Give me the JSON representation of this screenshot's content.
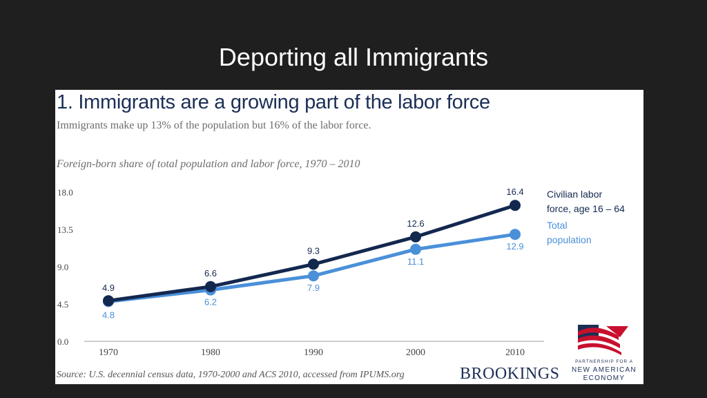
{
  "slide": {
    "title": "Deporting all Immigrants"
  },
  "figure": {
    "heading": "1. Immigrants are a growing part of the labor force",
    "subtitle": "Immigrants make up 13% of the population but 16% of the labor force.",
    "caption": "Foreign-born share of total population and labor force, 1970 – 2010",
    "source": "Source: U.S. decennial census data, 1970-2000 and ACS 2010, accessed from IPUMS.org",
    "brookings": "BROOKINGS",
    "partner_line1": "PARTNERSHIP FOR A",
    "partner_line2": "NEW AMERICAN",
    "partner_line3": "ECONOMY"
  },
  "chart_data": {
    "type": "line",
    "x": [
      1970,
      1980,
      1990,
      2000,
      2010
    ],
    "x_tick_labels": [
      "1970",
      "1980",
      "1990",
      "2000",
      "2010"
    ],
    "y_tick_labels": [
      "18.0",
      "13.5",
      "9.0",
      "4.5",
      "0.0"
    ],
    "y_ticks": [
      18.0,
      13.5,
      9.0,
      4.5,
      0.0
    ],
    "ylim": [
      0,
      18
    ],
    "grid": false,
    "legend_placement": "right of line ends",
    "series": [
      {
        "name_line1": "Civilian labor",
        "name_line2": "force, age 16 – 64",
        "values": [
          4.9,
          6.6,
          9.3,
          12.6,
          16.4
        ],
        "labels": [
          "4.9",
          "6.6",
          "9.3",
          "12.6",
          "16.4"
        ],
        "color": "#13284f"
      },
      {
        "name_line1": "Total",
        "name_line2": "population",
        "values": [
          4.8,
          6.2,
          7.9,
          11.1,
          12.9
        ],
        "labels": [
          "4.8",
          "6.2",
          "7.9",
          "11.1",
          "12.9"
        ],
        "color": "#4a90d9"
      }
    ]
  }
}
